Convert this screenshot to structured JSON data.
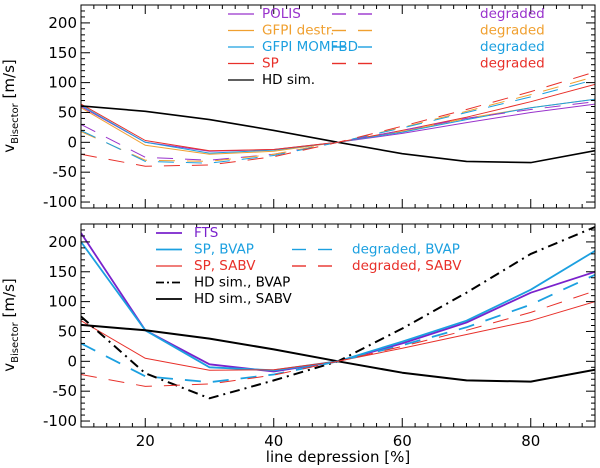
{
  "colors": {
    "purple": "#9933cc",
    "orange": "#f0a030",
    "cyan": "#1ca0e0",
    "red": "#e8302a",
    "black": "#000000",
    "fts_purple": "#7a22cc"
  },
  "chart_data": [
    {
      "type": "line",
      "panel": "top",
      "ylabel_main": "v",
      "ylabel_sub": "Bisector",
      "ylabel_unit": "[m/s]",
      "xlabel": "",
      "xlim": [
        10,
        90
      ],
      "ylim": [
        -110,
        230
      ],
      "xticks": [
        20,
        40,
        60,
        80
      ],
      "xtick_labels": [
        "",
        "",
        "",
        ""
      ],
      "yticks": [
        -100,
        -50,
        0,
        50,
        100,
        150,
        200
      ],
      "ytick_labels": [
        "-100",
        "-50",
        "0",
        "50",
        "100",
        "150",
        "200"
      ],
      "legend": {
        "entries": [
          {
            "label": "POLIS",
            "color_key": "purple"
          },
          {
            "label": "GFPI destr.",
            "color_key": "orange"
          },
          {
            "label": "GFPI MOMFBD",
            "color_key": "cyan"
          },
          {
            "label": "SP",
            "color_key": "red"
          },
          {
            "label": "HD sim.",
            "color_key": "black"
          }
        ],
        "degraded_entries": [
          {
            "label": "degraded",
            "color_key": "purple"
          },
          {
            "label": "degraded",
            "color_key": "orange"
          },
          {
            "label": "degraded",
            "color_key": "cyan"
          },
          {
            "label": "degraded",
            "color_key": "red"
          }
        ]
      },
      "series": [
        {
          "name": "POLIS",
          "color_key": "purple",
          "dash": "solid",
          "width": 1,
          "x": [
            10,
            20,
            30,
            40,
            50,
            60,
            70,
            80,
            90
          ],
          "y": [
            60,
            0,
            -15,
            -12,
            0,
            15,
            33,
            50,
            64
          ]
        },
        {
          "name": "GFPI destr.",
          "color_key": "orange",
          "dash": "solid",
          "width": 1,
          "x": [
            10,
            20,
            30,
            40,
            50,
            60,
            70,
            80,
            90
          ],
          "y": [
            58,
            -5,
            -20,
            -15,
            0,
            18,
            40,
            58,
            72
          ]
        },
        {
          "name": "GFPI MOMFBD",
          "color_key": "cyan",
          "dash": "solid",
          "width": 1,
          "x": [
            10,
            20,
            30,
            40,
            50,
            60,
            70,
            80,
            90
          ],
          "y": [
            62,
            0,
            -18,
            -13,
            0,
            17,
            38,
            58,
            72
          ]
        },
        {
          "name": "SP",
          "color_key": "red",
          "dash": "solid",
          "width": 1,
          "x": [
            10,
            20,
            30,
            40,
            50,
            60,
            70,
            80,
            90
          ],
          "y": [
            64,
            3,
            -14,
            -12,
            0,
            20,
            42,
            68,
            97
          ]
        },
        {
          "name": "HD sim.",
          "color_key": "black",
          "dash": "solid",
          "width": 1.6,
          "x": [
            10,
            20,
            30,
            40,
            50,
            60,
            70,
            80,
            90
          ],
          "y": [
            61,
            52,
            38,
            20,
            0,
            -19,
            -32,
            -34,
            -14
          ]
        },
        {
          "name": "POLIS degraded",
          "color_key": "purple",
          "dash": "long",
          "width": 1,
          "x": [
            10,
            20,
            30,
            40,
            50,
            60,
            70,
            80,
            90
          ],
          "y": [
            30,
            -25,
            -30,
            -20,
            0,
            20,
            40,
            55,
            68
          ]
        },
        {
          "name": "GFPI destr. degraded",
          "color_key": "orange",
          "dash": "long",
          "width": 1,
          "x": [
            10,
            20,
            30,
            40,
            50,
            60,
            70,
            80,
            90
          ],
          "y": [
            18,
            -30,
            -32,
            -20,
            0,
            25,
            52,
            80,
            110
          ]
        },
        {
          "name": "GFPI MOMFBD degraded",
          "color_key": "cyan",
          "dash": "long",
          "width": 1,
          "x": [
            10,
            20,
            30,
            40,
            50,
            60,
            70,
            80,
            90
          ],
          "y": [
            20,
            -32,
            -35,
            -22,
            0,
            24,
            50,
            76,
            105
          ]
        },
        {
          "name": "SP degraded",
          "color_key": "red",
          "dash": "long",
          "width": 1,
          "x": [
            10,
            20,
            30,
            40,
            50,
            60,
            70,
            80,
            90
          ],
          "y": [
            -20,
            -40,
            -38,
            -24,
            0,
            27,
            55,
            85,
            118
          ]
        }
      ]
    },
    {
      "type": "line",
      "panel": "bottom",
      "ylabel_main": "v",
      "ylabel_sub": "Bisector",
      "ylabel_unit": "[m/s]",
      "xlabel": "line depression [%]",
      "xlim": [
        10,
        90
      ],
      "ylim": [
        -110,
        230
      ],
      "xticks": [
        20,
        40,
        60,
        80
      ],
      "xtick_labels": [
        "20",
        "40",
        "60",
        "80"
      ],
      "yticks": [
        -100,
        -50,
        0,
        50,
        100,
        150,
        200
      ],
      "ytick_labels": [
        "-100",
        "-50",
        "0",
        "50",
        "100",
        "150",
        "200"
      ],
      "legend": {
        "entries": [
          {
            "label": "FTS",
            "color_key": "fts_purple",
            "dash": "solid"
          },
          {
            "label": "SP, BVAP",
            "color_key": "cyan",
            "dash": "solid"
          },
          {
            "label": "SP, SABV",
            "color_key": "red",
            "dash": "solid"
          },
          {
            "label": "HD sim., BVAP",
            "color_key": "black",
            "dash": "dashdot"
          },
          {
            "label": "HD sim., SABV",
            "color_key": "black",
            "dash": "solid"
          }
        ],
        "degraded_entries": [
          {
            "label": "degraded, BVAP",
            "color_key": "cyan"
          },
          {
            "label": "degraded, SABV",
            "color_key": "red"
          }
        ]
      },
      "series": [
        {
          "name": "FTS",
          "color_key": "fts_purple",
          "dash": "solid",
          "width": 1.8,
          "x": [
            10,
            20,
            30,
            40,
            50,
            60,
            70,
            80,
            90
          ],
          "y": [
            215,
            52,
            -5,
            -17,
            0,
            30,
            65,
            115,
            150
          ]
        },
        {
          "name": "SP, BVAP",
          "color_key": "cyan",
          "dash": "solid",
          "width": 1.8,
          "x": [
            10,
            20,
            30,
            40,
            50,
            60,
            70,
            80,
            90
          ],
          "y": [
            200,
            52,
            -10,
            -15,
            0,
            33,
            68,
            120,
            185
          ]
        },
        {
          "name": "SP, SABV",
          "color_key": "red",
          "dash": "solid",
          "width": 1,
          "x": [
            10,
            20,
            30,
            40,
            50,
            60,
            70,
            80,
            90
          ],
          "y": [
            68,
            5,
            -15,
            -14,
            0,
            22,
            45,
            68,
            100
          ]
        },
        {
          "name": "HD sim., BVAP",
          "color_key": "black",
          "dash": "dashdot",
          "width": 2,
          "x": [
            10,
            20,
            30,
            40,
            50,
            60,
            70,
            80,
            90
          ],
          "y": [
            75,
            -20,
            -62,
            -32,
            0,
            55,
            115,
            180,
            225
          ]
        },
        {
          "name": "HD sim., SABV",
          "color_key": "black",
          "dash": "solid",
          "width": 2,
          "x": [
            10,
            20,
            30,
            40,
            50,
            60,
            70,
            80,
            90
          ],
          "y": [
            61,
            52,
            38,
            20,
            0,
            -19,
            -32,
            -34,
            -14
          ]
        },
        {
          "name": "degraded, BVAP",
          "color_key": "cyan",
          "dash": "long",
          "width": 1.8,
          "x": [
            10,
            20,
            30,
            40,
            50,
            60,
            70,
            80,
            90
          ],
          "y": [
            30,
            -25,
            -35,
            -22,
            0,
            27,
            57,
            95,
            145
          ]
        },
        {
          "name": "degraded, SABV",
          "color_key": "red",
          "dash": "long",
          "width": 1,
          "x": [
            10,
            20,
            30,
            40,
            50,
            60,
            70,
            80,
            90
          ],
          "y": [
            -22,
            -42,
            -38,
            -23,
            0,
            25,
            52,
            82,
            118
          ]
        }
      ]
    }
  ]
}
